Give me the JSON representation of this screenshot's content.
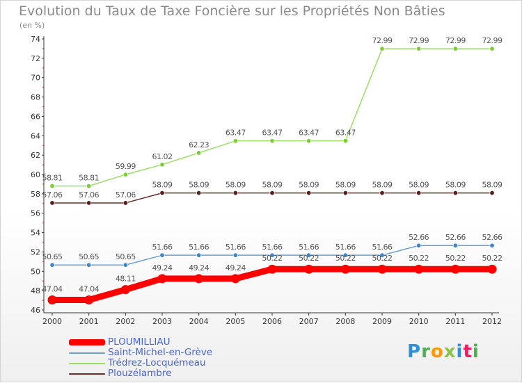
{
  "chart_data": {
    "type": "line",
    "title": "Evolution du Taux de Taxe Foncière sur les Propriétés Non Bâties",
    "unit": "(en %)",
    "x": [
      "2000",
      "2001",
      "2002",
      "2003",
      "2004",
      "2005",
      "2006",
      "2007",
      "2008",
      "2009",
      "2010",
      "2011",
      "2012"
    ],
    "ylim": [
      46,
      74
    ],
    "yticks": [
      46,
      48,
      50,
      52,
      54,
      56,
      58,
      60,
      62,
      64,
      66,
      68,
      70,
      72,
      74
    ],
    "grid": false,
    "legend_position": "bottom-left",
    "series": [
      {
        "name": "PLOUMILLIAU",
        "color": "#ff0000",
        "values": [
          47.04,
          47.04,
          48.11,
          49.24,
          49.24,
          49.24,
          50.22,
          50.22,
          50.22,
          50.22,
          50.22,
          50.22,
          50.22
        ],
        "labels": [
          "47.04",
          "47.04",
          "48.11",
          "49.24",
          "49.24",
          "49.24",
          "50.22",
          "50.22",
          "50.22",
          "50.22",
          "50.22",
          "50.22",
          "50.22"
        ]
      },
      {
        "name": "Saint-Michel-en-Grève",
        "color": "#6a9fd4",
        "values": [
          50.65,
          50.65,
          50.65,
          51.66,
          51.66,
          51.66,
          51.66,
          51.66,
          51.66,
          51.66,
          52.66,
          52.66,
          52.66
        ],
        "labels": [
          "50.65",
          "50.65",
          "50.65",
          "51.66",
          "51.66",
          "51.66",
          "51.66",
          "51.66",
          "51.66",
          "51.66",
          "52.66",
          "52.66",
          "52.66"
        ]
      },
      {
        "name": "Trédrez-Locquémeau",
        "color": "#99dd66",
        "values": [
          58.81,
          58.81,
          59.99,
          61.02,
          62.23,
          63.47,
          63.47,
          63.47,
          63.47,
          72.99,
          72.99,
          72.99,
          72.99
        ],
        "labels": [
          "58.81",
          "58.81",
          "59.99",
          "61.02",
          "62.23",
          "63.47",
          "63.47",
          "63.47",
          "63.47",
          "72.99",
          "72.99",
          "72.99",
          "72.99"
        ]
      },
      {
        "name": "Plouzélambre",
        "color": "#6b2c2c",
        "values": [
          57.06,
          57.06,
          57.06,
          58.09,
          58.09,
          58.09,
          58.09,
          58.09,
          58.09,
          58.09,
          58.09,
          58.09,
          58.09
        ],
        "labels": [
          "57.06",
          "57.06",
          "57.06",
          "58.09",
          "58.09",
          "58.09",
          "58.09",
          "58.09",
          "58.09",
          "58.09",
          "58.09",
          "58.09",
          "58.09"
        ]
      }
    ]
  },
  "legend": {
    "items": [
      {
        "label": "PLOUMILLIAU",
        "color": "#ff0000",
        "text_color": "#4a66c8"
      },
      {
        "label": "Saint-Michel-en-Grève",
        "color": "#6a9fd4",
        "text_color": "#4a66c8"
      },
      {
        "label": "Trédrez-Locquémeau",
        "color": "#99dd66",
        "text_color": "#4a66c8"
      },
      {
        "label": "Plouzélambre",
        "color": "#6b2c2c",
        "text_color": "#4a66c8"
      }
    ]
  },
  "brand": {
    "letters": [
      "P",
      "r",
      "o",
      "x",
      "i",
      "t",
      "i"
    ],
    "colors": [
      "#2f8fd8",
      "#4caf50",
      "#ff9800",
      "#8bc34a",
      "#2f8fd8",
      "#e91e63",
      "#4caf50"
    ]
  }
}
